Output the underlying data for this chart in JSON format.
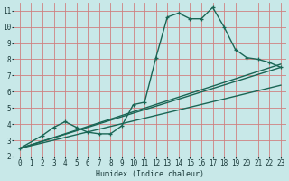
{
  "xlabel": "Humidex (Indice chaleur)",
  "bg_color": "#c8e8e8",
  "grid_color": "#d08080",
  "line_color": "#1a6655",
  "xlim": [
    -0.5,
    23.5
  ],
  "ylim": [
    2,
    11.5
  ],
  "xticks": [
    0,
    1,
    2,
    3,
    4,
    5,
    6,
    7,
    8,
    9,
    10,
    11,
    12,
    13,
    14,
    15,
    16,
    17,
    18,
    19,
    20,
    21,
    22,
    23
  ],
  "yticks": [
    2,
    3,
    4,
    5,
    6,
    7,
    8,
    9,
    10,
    11
  ],
  "line1_x": [
    0,
    2,
    3,
    4,
    5,
    6,
    7,
    8,
    9,
    10,
    11,
    12,
    13,
    14,
    15,
    16,
    17,
    18,
    19,
    20,
    21,
    22,
    23
  ],
  "line1_y": [
    2.5,
    3.3,
    3.8,
    4.15,
    3.8,
    3.5,
    3.4,
    3.4,
    3.9,
    5.2,
    5.35,
    8.1,
    10.6,
    10.85,
    10.5,
    10.5,
    11.2,
    10.0,
    8.6,
    8.1,
    8.0,
    7.8,
    7.5
  ],
  "line2_x": [
    0,
    23
  ],
  "line2_y": [
    2.5,
    7.5
  ],
  "line3_x": [
    0,
    23
  ],
  "line3_y": [
    2.5,
    7.7
  ],
  "line4_x": [
    0,
    23
  ],
  "line4_y": [
    2.5,
    6.4
  ]
}
